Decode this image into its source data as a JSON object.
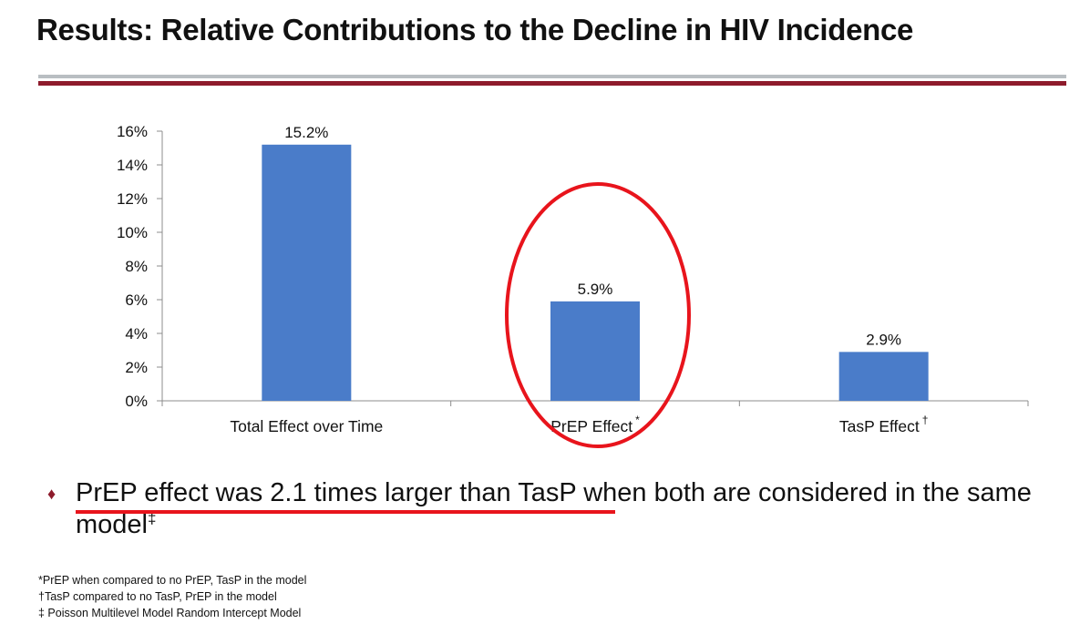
{
  "slide": {
    "title": "Results: Relative Contributions to the Decline in HIV Incidence",
    "statement": "PrEP effect was 2.1 times larger than TasP when  both are considered in the same model",
    "statement_mark": "‡",
    "footnotes": [
      "*PrEP when compared to no PrEP, TasP in the  model",
      "†TasP compared to no TasP, PrEP in the  model",
      "‡ Poisson Multilevel Model Random Intercept Model"
    ],
    "colors": {
      "bar": "#4a7cc9",
      "title_rule_gray": "#b9bec2",
      "title_rule_red": "#8e1b2c",
      "highlight": "#e8141c"
    }
  },
  "chart_data": {
    "type": "bar",
    "categories": [
      "Total Effect over Time",
      "PrEP Effect",
      "TasP Effect"
    ],
    "category_marks": [
      "",
      "*",
      "†"
    ],
    "values": [
      15.2,
      5.9,
      2.9
    ],
    "data_labels": [
      "15.2%",
      "5.9%",
      "2.9%"
    ],
    "ylim": [
      0,
      16
    ],
    "yticks": [
      "0%",
      "2%",
      "4%",
      "6%",
      "8%",
      "10%",
      "12%",
      "14%",
      "16%"
    ],
    "grid": false,
    "annotations": [
      {
        "type": "ellipse",
        "target_category": "PrEP Effect",
        "color": "#e8141c"
      },
      {
        "type": "underline",
        "target": "statement",
        "text": "PrEP effect was 2.1 times larger than TasP",
        "color": "#e8141c"
      }
    ]
  }
}
